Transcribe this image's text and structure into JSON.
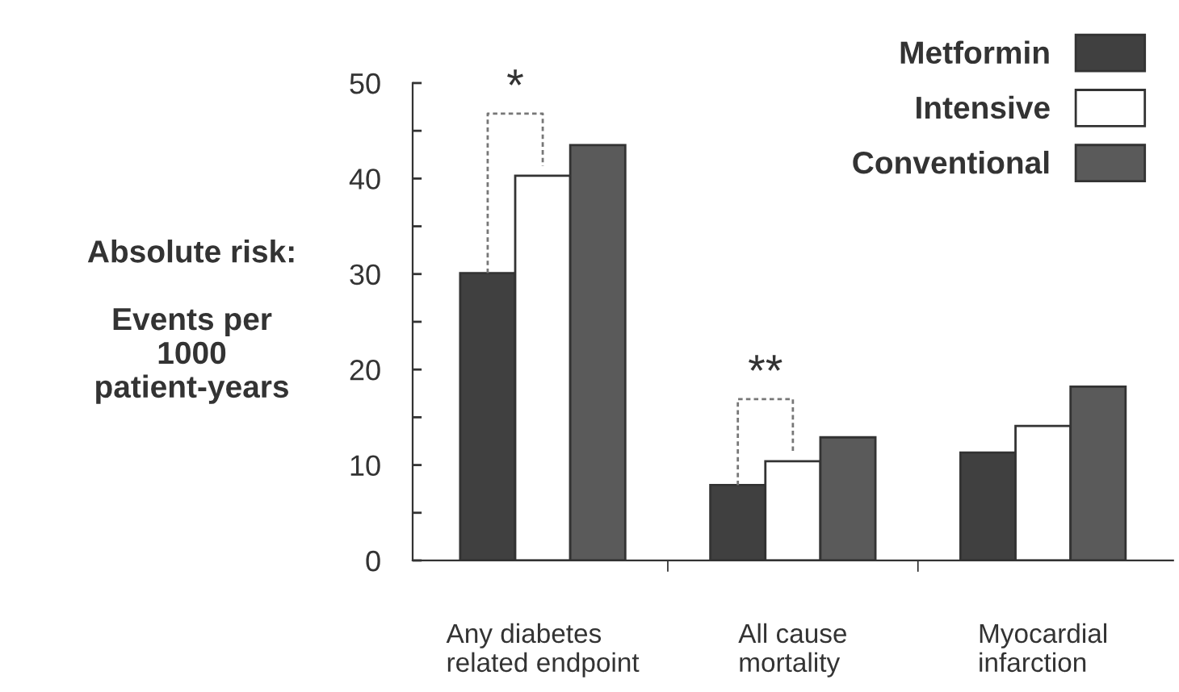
{
  "chart_data": {
    "type": "bar",
    "ylabel": "Absolute risk:\n\nEvents per\n1000\npatient-years",
    "categories": [
      "Any diabetes\nrelated endpoint",
      "All cause\nmortality",
      "Myocardial\ninfarction"
    ],
    "series": [
      {
        "name": "Metformin",
        "color": "#404040",
        "values": [
          30.1,
          7.9,
          11.3
        ]
      },
      {
        "name": "Intensive",
        "color": "#ffffff",
        "values": [
          40.3,
          10.4,
          14.1
        ]
      },
      {
        "name": "Conventional",
        "color": "#5a5a5a",
        "values": [
          43.5,
          12.9,
          18.2
        ]
      }
    ],
    "ylim": [
      0,
      50
    ],
    "yticks": [
      0,
      {
        "value": 5,
        "label": null
      },
      10,
      {
        "value": 15,
        "label": null
      },
      20,
      {
        "value": 25,
        "label": null
      },
      30,
      {
        "value": 35,
        "label": null
      },
      40,
      {
        "value": 45,
        "label": null
      },
      50
    ],
    "annotations": [
      "*",
      "**"
    ],
    "legend": "top right",
    "grid": false
  }
}
